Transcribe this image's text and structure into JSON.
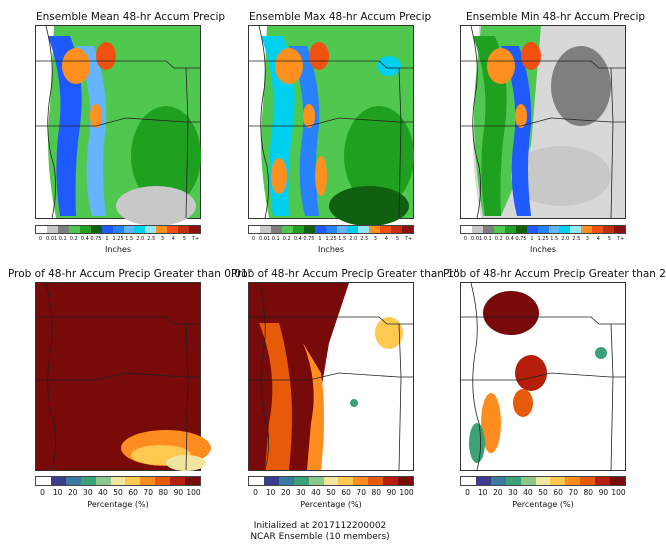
{
  "panels": [
    {
      "title": "Ensemble Mean 48-hr Accum Precip",
      "kind": "amount",
      "style": "mean"
    },
    {
      "title": "Ensemble Max 48-hr Accum Precip",
      "kind": "amount",
      "style": "max"
    },
    {
      "title": "Ensemble Min 48-hr Accum Precip",
      "kind": "amount",
      "style": "min"
    },
    {
      "title": "Prob of 48-hr Accum Precip Greater than 0.01\"",
      "kind": "prob",
      "style": "p001"
    },
    {
      "title": "Prob of 48-hr Accum Precip Greater than 1\"",
      "kind": "prob",
      "style": "p1"
    },
    {
      "title": "Prob of 48-hr Accum Precip Greater than 2",
      "kind": "prob",
      "style": "p2"
    }
  ],
  "precip_scale": {
    "label": "Inches",
    "ticks": [
      "0",
      "0.01",
      "0.1",
      "0.2",
      "0.4",
      "0.75",
      "1",
      "1.25",
      "1.5",
      "2.0",
      "2.5",
      "3",
      "4",
      "5",
      "7+"
    ],
    "colors": [
      "#ffffff",
      "#c8c8c8",
      "#7f7f7f",
      "#50c850",
      "#20a020",
      "#106010",
      "#1e5aff",
      "#2882ff",
      "#64b4ff",
      "#00d0f0",
      "#90e8f8",
      "#ff9020",
      "#f05010",
      "#c03010",
      "#8b1010"
    ]
  },
  "prob_scale": {
    "label": "Percentage (%)",
    "ticks": [
      "0",
      "10",
      "20",
      "30",
      "40",
      "50",
      "60",
      "70",
      "80",
      "90",
      "100"
    ],
    "colors": [
      "#ffffff",
      "#3c3c8c",
      "#3a7aa0",
      "#3ca078",
      "#8cc88c",
      "#f0e6a0",
      "#ffc850",
      "#ff8c1e",
      "#e65a0a",
      "#b41e0a",
      "#780a0a"
    ]
  },
  "footer": {
    "line1": "Initialized at 2017112200002",
    "line2": "NCAR Ensemble (10 members)"
  }
}
